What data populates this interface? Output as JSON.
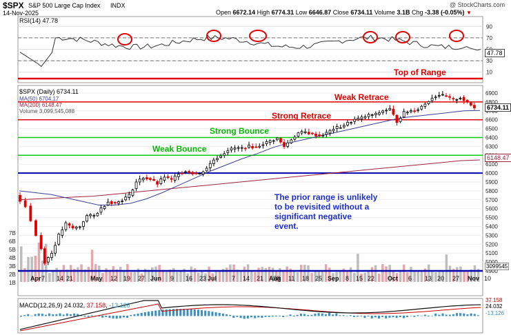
{
  "header": {
    "symbol": "$SPX",
    "name": "S&P 500 Large Cap Index",
    "exchange": "INDX",
    "date": "14-Nov-2025",
    "source": "@ StockCharts.com",
    "open_label": "Open",
    "open": "6672.14",
    "high_label": "High",
    "high": "6774.31",
    "low_label": "Low",
    "low": "6646.87",
    "close_label": "Close",
    "close": "6734.11",
    "volume_label": "Volume",
    "volume": "3.1B",
    "chg_label": "Chg",
    "chg": "-3.38 (-0.05%)"
  },
  "legend": {
    "daily": "$SPX (Daily) 6734.11",
    "ma50": "MA(50) 6704.17",
    "ma200": "MA(200) 6148.47",
    "volume": "Volume 3,099,545,088"
  },
  "rsi": {
    "label": "RSI(14) 47.78",
    "value_badge": "47.78",
    "ticks": [
      "90",
      "70",
      "50",
      "30",
      "10"
    ]
  },
  "macd": {
    "label": "MACD(12,26,9)",
    "v1": "24.032",
    "v2": "37.158",
    "v3": "-13.126",
    "badge1": "37.158",
    "badge2": "24.032",
    "badge3": "-13.126"
  },
  "annotations": {
    "top_of_range": "Top of Range",
    "weak_retrace": "Weak Retrace",
    "strong_retrace": "Strong Retrace",
    "strong_bounce": "Strong Bounce",
    "weak_bounce": "Weak Bounce",
    "note": [
      "The prior range is unlikely",
      "to be revisited without a",
      "significant negative",
      "event."
    ]
  },
  "price_badges": {
    "last": "6734.11",
    "ma200": "6148.47",
    "volume": "3099545"
  },
  "x_labels": [
    "Apr",
    "7",
    "14",
    "21",
    "May",
    "12",
    "19",
    "27",
    "Jun",
    "9",
    "16",
    "23",
    "Jul",
    "7",
    "14",
    "21",
    "28",
    "Aug",
    "11",
    "18",
    "25",
    "Sep",
    "8",
    "15",
    "22",
    "Oct",
    "6",
    "13",
    "20",
    "27",
    "Nov",
    "10"
  ],
  "y_price_ticks": [
    "6900",
    "6800",
    "6700",
    "6600",
    "6500",
    "6400",
    "6300",
    "6200",
    "6100",
    "6000",
    "5900",
    "5800",
    "5700",
    "5600",
    "5500",
    "5400",
    "5300",
    "5200",
    "5100",
    "5000",
    "4900"
  ],
  "vol_ticks": [
    "7B",
    "6B",
    "5B",
    "4B",
    "3B",
    "2B",
    "1B"
  ],
  "colors": {
    "red_line": "#e00000",
    "green_line": "#00cc00",
    "blue_line": "#0000b0",
    "ma50": "#3b3f9e",
    "ma200": "#a0243a",
    "up": "#000000",
    "down": "#e00000",
    "annotation_red": "#e00000",
    "annotation_green": "#00bb00",
    "annotation_blue": "#1f2fd0"
  },
  "chart_data": {
    "type": "candlestick",
    "levels": {
      "top_of_range": 7160,
      "weak_retrace": 6800,
      "strong_retrace": 6600,
      "strong_bounce": 6400,
      "weak_bounce": 6200,
      "prior_range": 6000
    },
    "price_path": [
      [
        0,
        5750
      ],
      [
        3,
        5630
      ],
      [
        6,
        5300
      ],
      [
        8,
        5000
      ],
      [
        10,
        5100
      ],
      [
        12,
        5300
      ],
      [
        14,
        5430
      ],
      [
        16,
        5380
      ],
      [
        18,
        5400
      ],
      [
        20,
        5520
      ],
      [
        22,
        5520
      ],
      [
        24,
        5600
      ],
      [
        26,
        5680
      ],
      [
        28,
        5660
      ],
      [
        30,
        5700
      ],
      [
        32,
        5750
      ],
      [
        34,
        5900
      ],
      [
        36,
        5950
      ],
      [
        38,
        5930
      ],
      [
        40,
        5880
      ],
      [
        42,
        5960
      ],
      [
        44,
        5920
      ],
      [
        46,
        6000
      ],
      [
        48,
        6020
      ],
      [
        50,
        6000
      ],
      [
        52,
        5990
      ],
      [
        54,
        6060
      ],
      [
        56,
        6150
      ],
      [
        58,
        6200
      ],
      [
        60,
        6260
      ],
      [
        62,
        6280
      ],
      [
        64,
        6280
      ],
      [
        66,
        6300
      ],
      [
        68,
        6290
      ],
      [
        70,
        6330
      ],
      [
        72,
        6360
      ],
      [
        74,
        6390
      ],
      [
        76,
        6300
      ],
      [
        78,
        6380
      ],
      [
        80,
        6450
      ],
      [
        82,
        6460
      ],
      [
        84,
        6440
      ],
      [
        86,
        6420
      ],
      [
        88,
        6450
      ],
      [
        90,
        6500
      ],
      [
        92,
        6520
      ],
      [
        94,
        6560
      ],
      [
        96,
        6600
      ],
      [
        98,
        6620
      ],
      [
        100,
        6650
      ],
      [
        102,
        6660
      ],
      [
        104,
        6700
      ],
      [
        106,
        6720
      ],
      [
        108,
        6580
      ],
      [
        110,
        6680
      ],
      [
        112,
        6700
      ],
      [
        114,
        6720
      ],
      [
        116,
        6780
      ],
      [
        118,
        6850
      ],
      [
        120,
        6880
      ],
      [
        122,
        6860
      ],
      [
        124,
        6820
      ],
      [
        126,
        6850
      ],
      [
        128,
        6790
      ],
      [
        130,
        6734
      ]
    ],
    "ma50": [
      5800,
      5780,
      5760,
      5720,
      5680,
      5640,
      5640,
      5660,
      5710,
      5780,
      5860,
      5940,
      6020,
      6090,
      6160,
      6220,
      6290,
      6340,
      6380,
      6420,
      6460,
      6500,
      6540,
      6580,
      6620,
      6640,
      6660,
      6680,
      6700,
      6704
    ],
    "ma200": [
      5700,
      5710,
      5720,
      5730,
      5740,
      5760,
      5780,
      5800,
      5820,
      5840,
      5860,
      5880,
      5900,
      5920,
      5940,
      5960,
      5980,
      6000,
      6020,
      6040,
      6060,
      6080,
      6100,
      6120,
      6140,
      6148
    ],
    "rsi_ylim": [
      0,
      100
    ],
    "rsi_levels": [
      70,
      30
    ],
    "volume_ylim": [
      0,
      8
    ]
  }
}
